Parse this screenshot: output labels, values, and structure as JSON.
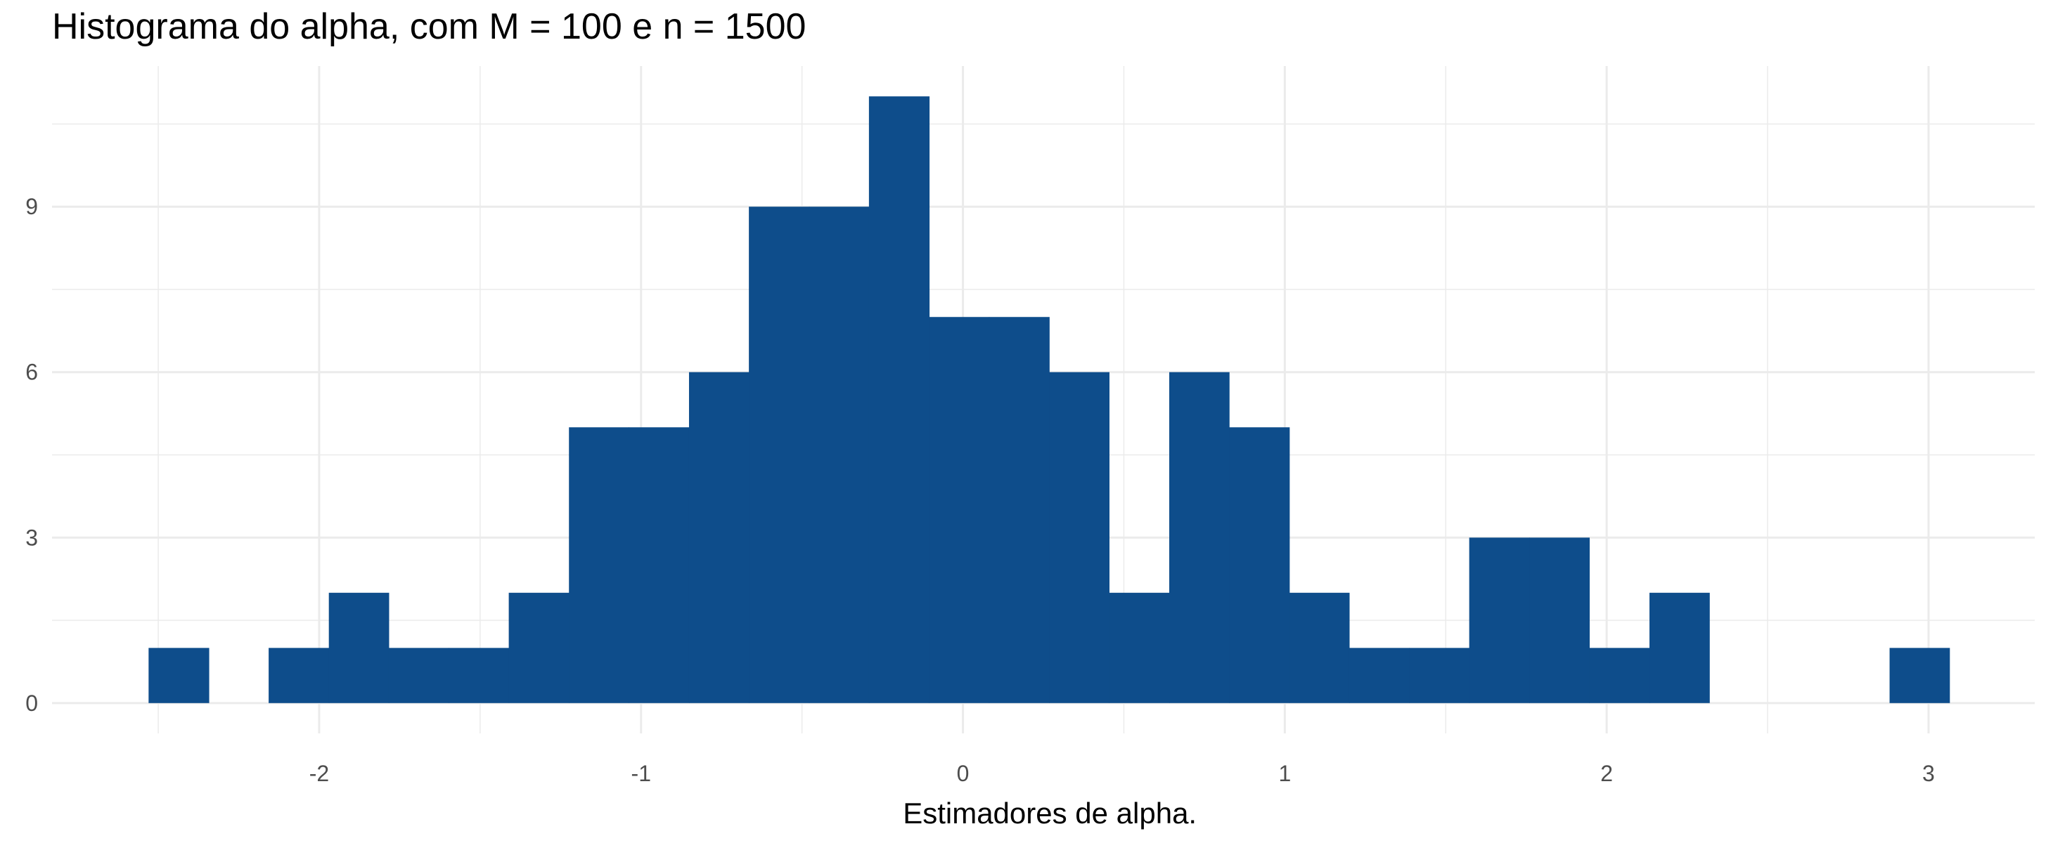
{
  "chart_data": {
    "type": "bar",
    "title": "Histograma do alpha, com M = 100 e n = 1500",
    "xlabel": "Estimadores de alpha.",
    "ylabel": "",
    "bin_width": 0.1865,
    "bins": [
      {
        "x0": -2.53,
        "x1": -2.343,
        "count": 1
      },
      {
        "x0": -2.343,
        "x1": -2.157,
        "count": 0
      },
      {
        "x0": -2.157,
        "x1": -1.97,
        "count": 1
      },
      {
        "x0": -1.97,
        "x1": -1.784,
        "count": 2
      },
      {
        "x0": -1.784,
        "x1": -1.597,
        "count": 1
      },
      {
        "x0": -1.597,
        "x1": -1.411,
        "count": 1
      },
      {
        "x0": -1.411,
        "x1": -1.224,
        "count": 2
      },
      {
        "x0": -1.224,
        "x1": -1.038,
        "count": 5
      },
      {
        "x0": -1.038,
        "x1": -0.851,
        "count": 5
      },
      {
        "x0": -0.851,
        "x1": -0.665,
        "count": 6
      },
      {
        "x0": -0.665,
        "x1": -0.478,
        "count": 9
      },
      {
        "x0": -0.478,
        "x1": -0.292,
        "count": 9
      },
      {
        "x0": -0.292,
        "x1": -0.105,
        "count": 11
      },
      {
        "x0": -0.105,
        "x1": 0.081,
        "count": 7
      },
      {
        "x0": 0.081,
        "x1": 0.268,
        "count": 7
      },
      {
        "x0": 0.268,
        "x1": 0.454,
        "count": 6
      },
      {
        "x0": 0.454,
        "x1": 0.641,
        "count": 2
      },
      {
        "x0": 0.641,
        "x1": 0.827,
        "count": 6
      },
      {
        "x0": 0.827,
        "x1": 1.014,
        "count": 5
      },
      {
        "x0": 1.014,
        "x1": 1.2,
        "count": 2
      },
      {
        "x0": 1.2,
        "x1": 1.387,
        "count": 1
      },
      {
        "x0": 1.387,
        "x1": 1.573,
        "count": 1
      },
      {
        "x0": 1.573,
        "x1": 1.76,
        "count": 3
      },
      {
        "x0": 1.76,
        "x1": 1.946,
        "count": 3
      },
      {
        "x0": 1.946,
        "x1": 2.133,
        "count": 1
      },
      {
        "x0": 2.133,
        "x1": 2.319,
        "count": 2
      },
      {
        "x0": 2.319,
        "x1": 2.506,
        "count": 0
      },
      {
        "x0": 2.506,
        "x1": 2.692,
        "count": 0
      },
      {
        "x0": 2.692,
        "x1": 2.879,
        "count": 0
      },
      {
        "x0": 2.879,
        "x1": 3.065,
        "count": 1
      }
    ],
    "x_ticks": [
      -2,
      -1,
      0,
      1,
      2,
      3
    ],
    "x_tick_labels": [
      "-2",
      "-1",
      "0",
      "1",
      "2",
      "3"
    ],
    "y_ticks": [
      0,
      3,
      6,
      9
    ],
    "y_tick_labels": [
      "0",
      "3",
      "6",
      "9"
    ],
    "xlim": [
      -2.83,
      3.33
    ],
    "ylim": [
      -0.55,
      11.55
    ],
    "grid": true,
    "legend": false,
    "bar_color": "#0E4D8B",
    "grid_color": "#EBEBEB",
    "tick_label_color": "#4D4D4D"
  }
}
